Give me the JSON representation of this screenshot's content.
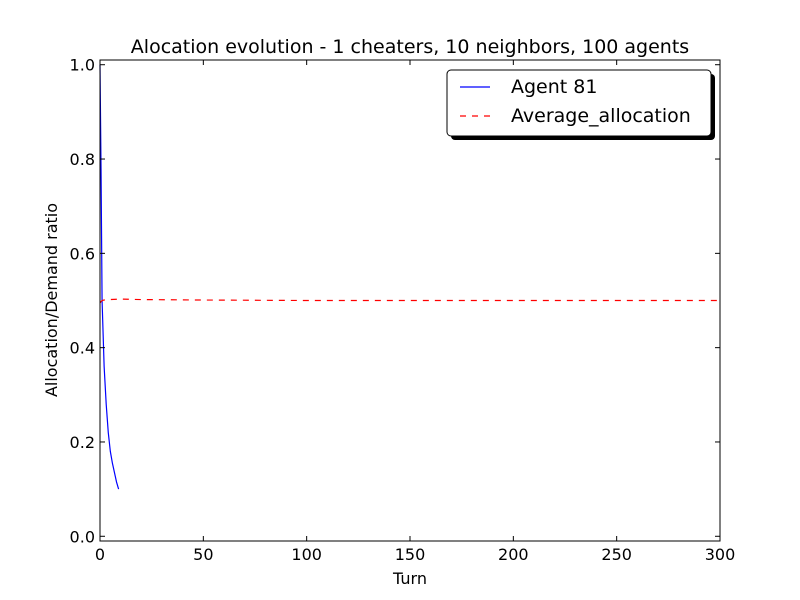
{
  "chart_data": {
    "type": "line",
    "title": "Alocation evolution - 1 cheaters, 10 neighbors, 100 agents",
    "xlabel": "Turn",
    "ylabel": "Allocation/Demand ratio",
    "xlim": [
      0,
      300
    ],
    "ylim": [
      -0.01,
      1.01
    ],
    "xticks": [
      0,
      50,
      100,
      150,
      200,
      250,
      300
    ],
    "xtick_labels": [
      "0",
      "50",
      "100",
      "150",
      "200",
      "250",
      "300"
    ],
    "yticks": [
      0.0,
      0.2,
      0.4,
      0.6,
      0.8,
      1.0
    ],
    "ytick_labels": [
      "0.0",
      "0.2",
      "0.4",
      "0.6",
      "0.8",
      "1.0"
    ],
    "grid": false,
    "legend_position": "top-right",
    "series": [
      {
        "name": "Agent 81",
        "color": "#0000ff",
        "style": "solid",
        "x": [
          0,
          0.5,
          1,
          2,
          3,
          4,
          5,
          6,
          7,
          8,
          9
        ],
        "y": [
          1.0,
          0.78,
          0.5,
          0.36,
          0.28,
          0.22,
          0.18,
          0.155,
          0.135,
          0.115,
          0.1
        ]
      },
      {
        "name": "Average_allocation",
        "color": "#ff0000",
        "style": "dashed",
        "x": [
          0,
          1,
          2,
          5,
          10,
          20,
          50,
          100,
          150,
          200,
          250,
          300
        ],
        "y": [
          0.495,
          0.5,
          0.501,
          0.502,
          0.503,
          0.502,
          0.501,
          0.5,
          0.5,
          0.5,
          0.5,
          0.5
        ]
      }
    ]
  }
}
